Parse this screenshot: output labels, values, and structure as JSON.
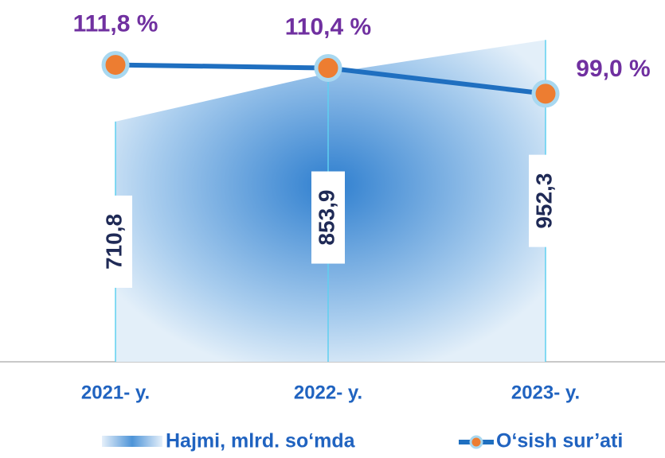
{
  "chart_data": {
    "type": "area_line",
    "categories": [
      "2021- y.",
      "2022- y.",
      "2023- y."
    ],
    "series": [
      {
        "name": "Hajmi, mlrd. so‘mda",
        "type": "area",
        "color": "#3a86d0",
        "values": [
          710.8,
          853.9,
          952.3
        ],
        "value_labels": [
          "710,8",
          "853,9",
          "952,3"
        ]
      },
      {
        "name": "O‘sish sur’ati",
        "type": "line",
        "axis": "y2",
        "color": "#1f6fc0",
        "marker_color": "#ed7d31",
        "values": [
          111.8,
          110.4,
          99.0
        ],
        "value_labels": [
          "111,8 %",
          "110,4 %",
          "99,0 %"
        ]
      }
    ],
    "ylim": [
      0,
      1000
    ],
    "y2lim": [
      -20,
      130
    ],
    "legend": "bottom"
  }
}
